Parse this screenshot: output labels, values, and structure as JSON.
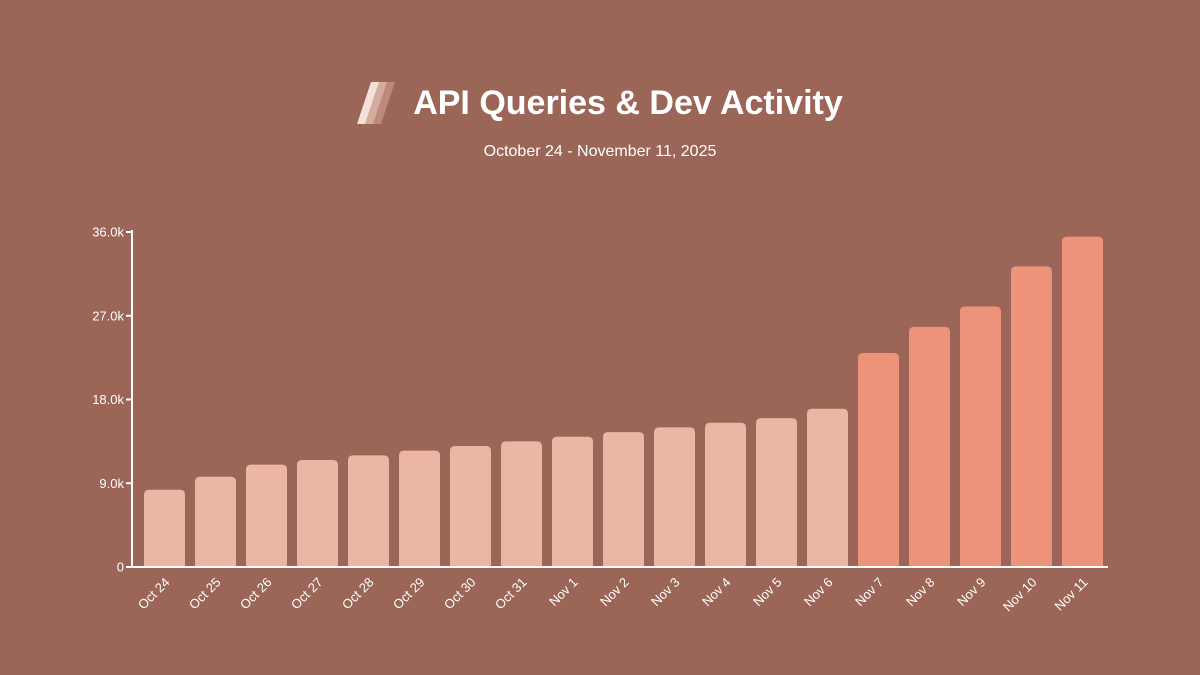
{
  "colors": {
    "background": "#9b6557",
    "text": "#ffffff",
    "bar_light": "#ecb6a4",
    "bar_highlight": "#ec937a",
    "axis": "#ffffff",
    "logo_stripes": [
      "#f2e1da",
      "#d6ab9f",
      "#bd897b"
    ]
  },
  "header": {
    "logo_icon": "triple-slash-logo-icon",
    "title": "API Queries & Dev Activity",
    "subtitle": "October 24 - November 11, 2025"
  },
  "chart_data": {
    "type": "bar",
    "title": "API Queries & Dev Activity",
    "subtitle": "October 24 - November 11, 2025",
    "xlabel": "",
    "ylabel": "",
    "ylim": [
      0,
      36000
    ],
    "yticks": [
      {
        "value": 0,
        "label": "0"
      },
      {
        "value": 9000,
        "label": "9.0k"
      },
      {
        "value": 18000,
        "label": "18.0k"
      },
      {
        "value": 27000,
        "label": "27.0k"
      },
      {
        "value": 36000,
        "label": "36.0k"
      }
    ],
    "grid": false,
    "legend": "none",
    "categories": [
      "Oct 24",
      "Oct 25",
      "Oct 26",
      "Oct 27",
      "Oct 28",
      "Oct 29",
      "Oct 30",
      "Oct 31",
      "Nov 1",
      "Nov 2",
      "Nov 3",
      "Nov 4",
      "Nov 5",
      "Nov 6",
      "Nov 7",
      "Nov 8",
      "Nov 9",
      "Nov 10",
      "Nov 11"
    ],
    "values": [
      8300,
      9700,
      11000,
      11500,
      12000,
      12500,
      13000,
      13500,
      14000,
      14500,
      15000,
      15500,
      16000,
      17000,
      23000,
      25800,
      28000,
      32300,
      35500
    ],
    "highlighted_from_category": "Nov 7"
  }
}
